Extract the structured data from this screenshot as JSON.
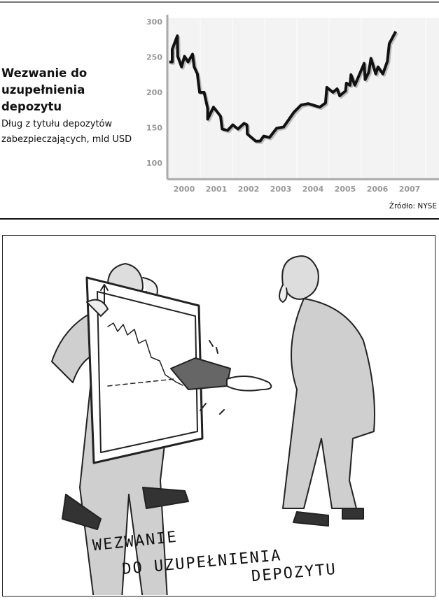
{
  "header": {
    "title": "Wezwanie do uzupełnienia depozytu",
    "subtitle": "Dług z tytułu depozytów zabezpieczających, mld USD",
    "source": "Źródło: NYSE"
  },
  "chart_data": {
    "type": "line",
    "title": "Wezwanie do uzupełnienia depozytu",
    "ylabel": "Dług z tytułu depozytów zabezpieczających, mld USD",
    "xlabel": "",
    "x_ticks": [
      "2000",
      "2001",
      "2002",
      "2003",
      "2004",
      "2005",
      "2006",
      "2007"
    ],
    "y_ticks": [
      100,
      150,
      200,
      250,
      300
    ],
    "xlim": [
      2000,
      2008.4
    ],
    "ylim": [
      78,
      305
    ],
    "grid": "vertical year separators",
    "line_color": "#111111",
    "background": "#f3f3f3",
    "series": [
      {
        "x": [
          2000.04,
          2000.13,
          2000.13,
          2000.29,
          2000.3,
          2000.42,
          2000.51,
          2000.62,
          2000.76,
          2000.81,
          2000.91,
          2000.98,
          2001.12,
          2001.23,
          2001.23,
          2001.41,
          2001.63,
          2001.68,
          2001.85,
          2002.01,
          2002.17,
          2002.36,
          2002.45,
          2002.46,
          2002.72,
          2002.86,
          2002.97,
          2003.15,
          2003.37,
          2003.59,
          2003.91,
          2004.13,
          2004.35,
          2004.71,
          2004.89,
          2004.93,
          2005.12,
          2005.25,
          2005.33,
          2005.51,
          2005.54,
          2005.65,
          2005.68,
          2005.8,
          2006.09,
          2006.12,
          2006.23,
          2006.3,
          2006.45,
          2006.52,
          2006.67,
          2006.81,
          2006.87,
          2007.07
        ],
        "y": [
          243,
          243,
          261,
          280,
          251,
          236,
          251,
          243,
          254,
          236,
          226,
          200,
          200,
          177,
          162,
          179,
          166,
          148,
          146,
          154,
          148,
          156,
          154,
          141,
          131,
          131,
          138,
          136,
          149,
          151,
          172,
          182,
          184,
          179,
          185,
          207,
          200,
          205,
          195,
          202,
          213,
          210,
          225,
          210,
          241,
          218,
          228,
          248,
          226,
          236,
          226,
          244,
          269,
          286
        ]
      }
    ]
  },
  "cartoon": {
    "caption_line1": "WEZWANIE",
    "caption_line2": "DO UZUPEŁNIENIA",
    "caption_line3": "DEPOZYTU"
  }
}
